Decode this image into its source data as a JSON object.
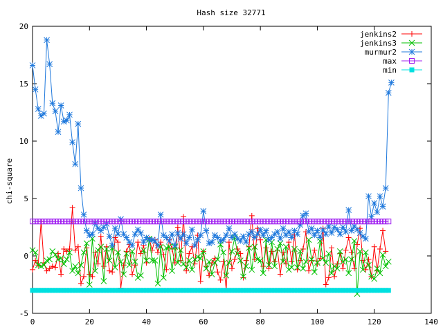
{
  "chart_data": {
    "type": "line",
    "title": "Hash size 32771",
    "xlabel": "",
    "ylabel": "chi-square",
    "xlim": [
      0,
      140
    ],
    "ylim": [
      -5,
      20
    ],
    "xticks": [
      "0",
      "20",
      "40",
      "60",
      "80",
      "100",
      "120",
      "140"
    ],
    "yticks": [
      "-5",
      "0",
      "5",
      "10",
      "15",
      "20"
    ],
    "legend_position": "top-right",
    "grid": false,
    "series": [
      {
        "name": "jenkins2",
        "color": "#ff0000",
        "marker": "plus",
        "values": [
          -1.2,
          -0.4,
          -0.8,
          3.0,
          -0.6,
          -1.3,
          -1.1,
          -0.9,
          -1.0,
          0.2,
          -1.6,
          0.6,
          0.4,
          0.6,
          4.2,
          0.5,
          0.8,
          -2.4,
          -1.8,
          0.7,
          -1.6,
          -1.8,
          0.3,
          -0.7,
          1.7,
          -0.9,
          0.8,
          -1.3,
          -1.4,
          1.6,
          1.2,
          -2.8,
          -0.8,
          0.4,
          1.0,
          -1.6,
          -0.8,
          1.2,
          0.2,
          0.9,
          -0.6,
          1.5,
          0.5,
          1.4,
          0.3,
          1.2,
          0.1,
          -1.2,
          1.4,
          0.6,
          -0.6,
          2.5,
          -0.4,
          3.4,
          -1.3,
          0.2,
          0.8,
          -0.7,
          1.8,
          -2.2,
          0.4,
          -0.9,
          -1.7,
          -0.6,
          -0.2,
          -1.4,
          -2.1,
          -0.5,
          -2.9,
          1.2,
          -1.1,
          -0.3,
          0.6,
          0.2,
          -1.9,
          -0.4,
          0.8,
          3.5,
          -0.3,
          2.4,
          1.4,
          -0.9,
          0.7,
          -1.1,
          0.4,
          -0.5,
          0.5,
          -1.6,
          0.3,
          -0.7,
          1.2,
          -0.5,
          1.9,
          -1.2,
          -0.4,
          0.6,
          2.1,
          -1.3,
          -0.4,
          0.5,
          -0.7,
          -0.2,
          2.4,
          -2.5,
          -1.9,
          0.7,
          -1.8,
          -0.7,
          0.2,
          -1.1,
          0.5,
          1.6,
          0.3,
          -1.1,
          1.0,
          2.4,
          -0.4,
          -1.2,
          -0.3,
          -1.8,
          0.8,
          -1.3,
          0.6,
          2.2,
          0.4
        ]
      },
      {
        "name": "jenkins3",
        "color": "#00c000",
        "marker": "cross",
        "values": [
          0.5,
          0.3,
          -0.8,
          -0.9,
          -0.8,
          -0.4,
          -0.3,
          0.4,
          0.1,
          -0.3,
          -0.2,
          -0.7,
          -0.3,
          0.3,
          -1.3,
          -0.9,
          -1.5,
          -0.8,
          0.3,
          1.1,
          -2.5,
          1.5,
          -1.3,
          0.5,
          0.8,
          -2.2,
          0.6,
          -0.4,
          0.7,
          -1.0,
          0.3,
          -0.5,
          -1.6,
          0.2,
          -0.8,
          0.4,
          -0.5,
          -1.9,
          -1.7,
          0.5,
          -0.4,
          1.5,
          -0.4,
          -0.4,
          -2.4,
          0.8,
          -1.9,
          0.7,
          0.8,
          -1.3,
          0.8,
          -0.6,
          0.5,
          -0.7,
          -1.0,
          -0.4,
          -1.2,
          -0.3,
          -0.1,
          -0.2,
          0.4,
          -1.1,
          -0.5,
          -1.6,
          -0.6,
          -0.3,
          1.0,
          0.3,
          -1.7,
          -0.6,
          0.4,
          1.6,
          0.2,
          -0.4,
          -1.8,
          -0.9,
          0.7,
          -1.2,
          0.8,
          -0.3,
          -0.4,
          -1.5,
          1.4,
          -0.8,
          1.2,
          -0.9,
          0.6,
          1.1,
          -0.5,
          0.8,
          -1.2,
          -1.0,
          0.6,
          -1.0,
          0.4,
          -1.1,
          -0.5,
          1.4,
          -0.3,
          -1.4,
          -0.6,
          1.3,
          -0.2,
          -0.6,
          0.2,
          -1.5,
          -0.9,
          -1.1,
          0.4,
          -0.5,
          -0.3,
          -1.5,
          -0.3,
          1.3,
          -3.3,
          0.4,
          -1.2,
          0.3,
          -0.8,
          -1.8,
          -2.0,
          -1.1,
          -1.5,
          0.1,
          -0.9,
          -0.5
        ]
      },
      {
        "name": "murmur2",
        "color": "#1e78dc",
        "marker": "star",
        "values": [
          16.6,
          14.5,
          12.8,
          12.2,
          12.4,
          18.8,
          16.7,
          13.3,
          12.6,
          10.8,
          13.1,
          11.7,
          11.8,
          12.3,
          9.9,
          8.0,
          11.5,
          5.9,
          3.6,
          2.2,
          1.8,
          1.9,
          2.9,
          2.4,
          2.2,
          2.5,
          2.8,
          1.7,
          0.9,
          2.4,
          1.9,
          3.2,
          1.9,
          1.6,
          1.2,
          0.9,
          1.9,
          2.3,
          2.0,
          1.2,
          1.6,
          1.4,
          1.4,
          1.3,
          0.9,
          3.6,
          1.8,
          1.6,
          1.3,
          1.9,
          0.9,
          2.0,
          1.5,
          1.9,
          1.1,
          1.6,
          2.3,
          0.9,
          1.4,
          1.8,
          3.9,
          2.2,
          1.1,
          1.2,
          1.8,
          1.6,
          1.3,
          1.4,
          1.8,
          2.4,
          1.6,
          1.9,
          1.5,
          1.3,
          1.7,
          1.2,
          1.9,
          2.1,
          1.6,
          1.9,
          2.3,
          1.8,
          2.2,
          1.4,
          1.6,
          1.9,
          2.1,
          1.5,
          2.4,
          1.8,
          2.1,
          1.6,
          2.2,
          1.9,
          2.7,
          3.5,
          3.7,
          2.1,
          2.4,
          1.8,
          2.2,
          1.6,
          2.3,
          1.9,
          2.6,
          2.0,
          2.5,
          2.3,
          1.9,
          2.5,
          2.1,
          4.0,
          2.2,
          2.6,
          2.3,
          2.0,
          1.7,
          1.5,
          5.2,
          3.4,
          4.6,
          3.8,
          5.2,
          4.3,
          5.9,
          14.2,
          15.1
        ]
      },
      {
        "name": "max",
        "color": "#a020f0",
        "marker": "square",
        "constant": 3.0,
        "x_range": [
          0,
          125
        ]
      },
      {
        "name": "min",
        "color": "#00e0e0",
        "marker": "filled-square",
        "constant": -3.0,
        "x_range": [
          0,
          125
        ]
      }
    ]
  }
}
